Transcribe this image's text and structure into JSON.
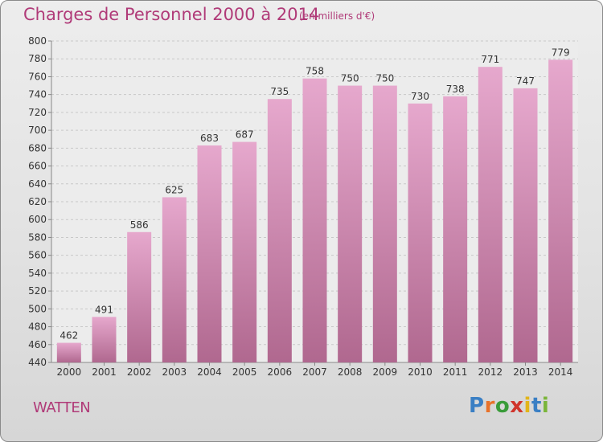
{
  "header": {
    "title": "Charges de Personnel 2000 à 2014",
    "unit": "(en milliers d'€)"
  },
  "footer": {
    "commune": "WATTEN",
    "logo_letters": [
      "P",
      "r",
      "o",
      "x",
      "i",
      "t",
      "i"
    ]
  },
  "colors": {
    "title": "#b03a78",
    "bar_top": "#e6a8cd",
    "bar_bottom": "#b0688f",
    "logo": [
      "#3a7fc4",
      "#e8722a",
      "#3a9c3a",
      "#d0342c",
      "#e2b51a",
      "#3a7fc4",
      "#7ab53a"
    ]
  },
  "chart_data": {
    "type": "bar",
    "title": "Charges de Personnel 2000 à 2014",
    "xlabel": "",
    "ylabel": "",
    "categories": [
      "2000",
      "2001",
      "2002",
      "2003",
      "2004",
      "2005",
      "2006",
      "2007",
      "2008",
      "2009",
      "2010",
      "2011",
      "2012",
      "2013",
      "2014"
    ],
    "values": [
      462,
      491,
      586,
      625,
      683,
      687,
      735,
      758,
      750,
      750,
      730,
      738,
      771,
      747,
      779
    ],
    "ylim": [
      440,
      800
    ],
    "yticks": [
      440,
      460,
      480,
      500,
      520,
      540,
      560,
      580,
      600,
      620,
      640,
      660,
      680,
      700,
      720,
      740,
      760,
      780,
      800
    ],
    "grid": true,
    "legend": "none"
  }
}
